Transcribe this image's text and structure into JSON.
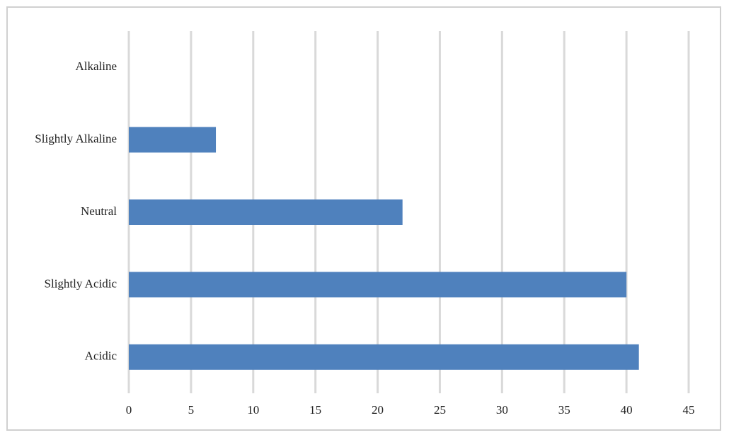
{
  "chart_data": {
    "type": "hbar",
    "categories": [
      "Alkaline",
      "Slightly Alkaline",
      "Neutral",
      "Slightly Acidic",
      "Acidic"
    ],
    "values": [
      0,
      7,
      22,
      40,
      41
    ],
    "color": "#4f81bd",
    "xlim": [
      0,
      45
    ],
    "xticks": [
      0,
      5,
      10,
      15,
      20,
      25,
      30,
      35,
      40,
      45
    ],
    "grid": true
  }
}
